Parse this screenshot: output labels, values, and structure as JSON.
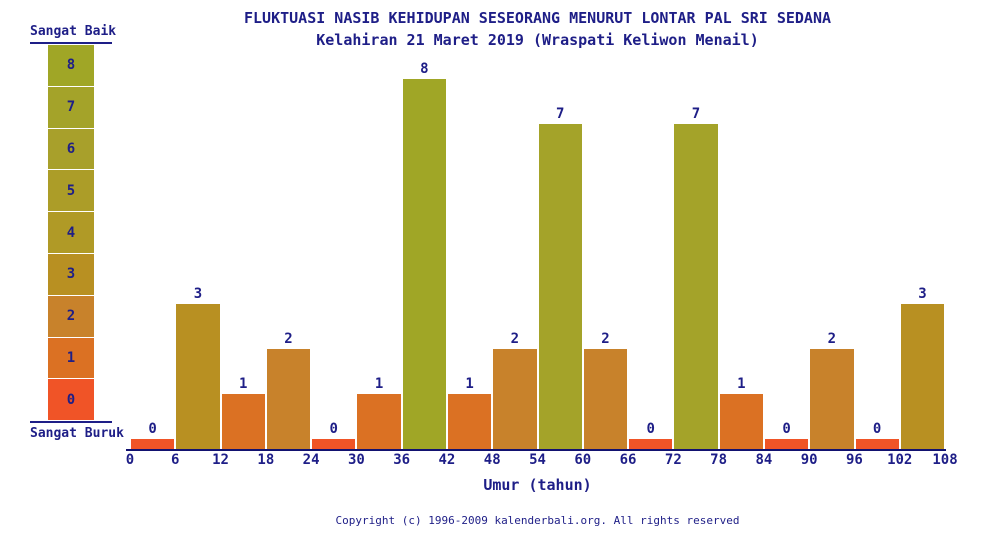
{
  "header": {
    "title": "FLUKTUASI NASIB KEHIDUPAN SESEORANG MENURUT LONTAR PAL SRI SEDANA",
    "subtitle": "Kelahiran 21 Maret 2019 (Wraspati Keliwon Menail)"
  },
  "legend": {
    "top_label": "Sangat Baik",
    "bottom_label": "Sangat Buruk",
    "cells": [
      8,
      7,
      6,
      5,
      4,
      3,
      2,
      1,
      0
    ]
  },
  "chart_data": {
    "type": "bar",
    "title": "FLUKTUASI NASIB KEHIDUPAN SESEORANG MENURUT LONTAR PAL SRI SEDANA",
    "subtitle": "Kelahiran 21 Maret 2019 (Wraspati Keliwon Menail)",
    "xlabel": "Umur (tahun)",
    "ylabel": "",
    "x_ticks": [
      0,
      6,
      12,
      18,
      24,
      30,
      36,
      42,
      48,
      54,
      60,
      66,
      72,
      78,
      84,
      90,
      96,
      102,
      108
    ],
    "categories": [
      "0-6",
      "6-12",
      "12-18",
      "18-24",
      "24-30",
      "30-36",
      "36-42",
      "42-48",
      "48-54",
      "54-60",
      "60-66",
      "66-72",
      "72-78",
      "78-84",
      "84-90",
      "90-96",
      "96-102",
      "102-108"
    ],
    "values": [
      0,
      3,
      1,
      2,
      0,
      1,
      8,
      1,
      2,
      7,
      2,
      0,
      7,
      1,
      0,
      2,
      0,
      3
    ],
    "ylim": [
      0,
      8
    ],
    "grid": false,
    "legend_position": "left",
    "scale_best_label": "Sangat Baik",
    "scale_worst_label": "Sangat Buruk"
  },
  "footer": {
    "copyright": "Copyright (c) 1996-2009 kalenderbali.org. All rights reserved"
  },
  "colors": {
    "background": "#ffffff",
    "text_navy": "#1e1e87",
    "axis_navy": "#121270",
    "palette": [
      "#F05427",
      "#DB7123",
      "#C8822B",
      "#B89022",
      "#B09A26",
      "#AC9D28",
      "#A8A02B",
      "#A4A329",
      "#A0A626"
    ]
  }
}
